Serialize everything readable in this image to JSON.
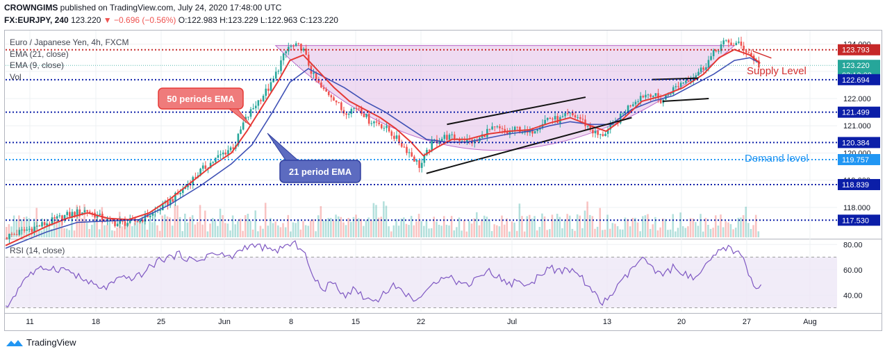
{
  "header": {
    "publisher": "CROWNGIMS",
    "published_text": "published on TradingView.com, July 24, 2020 17:48:00 UTC",
    "symbol": "FX:EURJPY, 240",
    "last": "123.220",
    "change": "▼ −0.696 (−0.56%)",
    "ohlc": "O:122.983 H:123.229 L:122.963 C:123.220"
  },
  "legend": {
    "title": "Euro / Japanese Yen, 4h, FXCM",
    "ema21": "EMA (21, close)",
    "ema9": "EMA (9, close)",
    "vol": "Vol",
    "rsi": "RSI (14, close)"
  },
  "footer": {
    "brand": "TradingView"
  },
  "colors": {
    "up": "#26a69a",
    "down": "#ef5350",
    "ema_fast": "#e53935",
    "ema_slow": "#3f51b5",
    "dotted_blue": "#0b1ea8",
    "dotted_red": "#c62828",
    "rsi": "#7e57c2",
    "cup_fill": "#e1bee7"
  },
  "chart_data": [
    {
      "type": "candlestick",
      "title": "Euro / Japanese Yen, 4h, FXCM",
      "x_ticks": [
        "11",
        "18",
        "25",
        "Jun",
        "8",
        "15",
        "22",
        "Jul",
        "13",
        "20",
        "27",
        "Aug"
      ],
      "y_ticks": [
        "124.000",
        "123.000",
        "122.000",
        "121.000",
        "120.000",
        "119.000",
        "118.000"
      ],
      "ylim": [
        116.9,
        124.5
      ],
      "price_path": [
        [
          0,
          116.9
        ],
        [
          4,
          117.4
        ],
        [
          6,
          117.7
        ],
        [
          8,
          117.9
        ],
        [
          9.5,
          117.6
        ],
        [
          11,
          117.4
        ],
        [
          13,
          117.5
        ],
        [
          15,
          117.9
        ],
        [
          17,
          118.5
        ],
        [
          19,
          119.3
        ],
        [
          21,
          119.9
        ],
        [
          22.5,
          120.3
        ],
        [
          23.3,
          121.1
        ],
        [
          24.5,
          121.8
        ],
        [
          26,
          122.5
        ],
        [
          27,
          123.4
        ],
        [
          27.7,
          123.9
        ],
        [
          29,
          123.9
        ],
        [
          30,
          122.9
        ],
        [
          31,
          122.3
        ],
        [
          32,
          122.1
        ],
        [
          33,
          121.5
        ],
        [
          34.5,
          121.7
        ],
        [
          35.5,
          121.2
        ],
        [
          36.5,
          121.1
        ],
        [
          37.5,
          120.8
        ],
        [
          38.5,
          120.4
        ],
        [
          39.5,
          120.0
        ],
        [
          40.5,
          119.5
        ],
        [
          41.7,
          120.4
        ],
        [
          43,
          120.6
        ],
        [
          44.5,
          120.5
        ],
        [
          46,
          120.4
        ],
        [
          47,
          120.8
        ],
        [
          48,
          120.9
        ],
        [
          49,
          120.7
        ],
        [
          50,
          120.9
        ],
        [
          51,
          120.7
        ],
        [
          52,
          121.0
        ],
        [
          53,
          121.3
        ],
        [
          54,
          121.2
        ],
        [
          55,
          121.4
        ],
        [
          56,
          121.3
        ],
        [
          57,
          120.9
        ],
        [
          58,
          120.6
        ],
        [
          59,
          120.9
        ],
        [
          60,
          121.3
        ],
        [
          61,
          121.8
        ],
        [
          62,
          122.1
        ],
        [
          63,
          122.2
        ],
        [
          64,
          121.9
        ],
        [
          65,
          122.3
        ],
        [
          66,
          122.6
        ],
        [
          67,
          122.8
        ],
        [
          68,
          123.1
        ],
        [
          69,
          123.6
        ],
        [
          70,
          124.05
        ],
        [
          71.5,
          124.0
        ],
        [
          72.5,
          123.7
        ],
        [
          73.5,
          123.22
        ]
      ],
      "ema_fast_path": [
        [
          0,
          116.6
        ],
        [
          4,
          117.3
        ],
        [
          6,
          117.6
        ],
        [
          8,
          117.8
        ],
        [
          10,
          117.6
        ],
        [
          12,
          117.55
        ],
        [
          14,
          117.8
        ],
        [
          16,
          118.3
        ],
        [
          18,
          118.9
        ],
        [
          20,
          119.5
        ],
        [
          22,
          120.0
        ],
        [
          23.5,
          120.8
        ],
        [
          25,
          121.7
        ],
        [
          26.5,
          122.6
        ],
        [
          27.7,
          123.4
        ],
        [
          29,
          123.6
        ],
        [
          30.5,
          123.0
        ],
        [
          32,
          122.4
        ],
        [
          33.5,
          121.9
        ],
        [
          35,
          121.6
        ],
        [
          36.5,
          121.3
        ],
        [
          38,
          120.9
        ],
        [
          39.5,
          120.4
        ],
        [
          40.7,
          119.9
        ],
        [
          42,
          120.2
        ],
        [
          43.5,
          120.5
        ],
        [
          45,
          120.5
        ],
        [
          47,
          120.7
        ],
        [
          49,
          120.8
        ],
        [
          51,
          120.85
        ],
        [
          53,
          121.1
        ],
        [
          55,
          121.3
        ],
        [
          57,
          121.0
        ],
        [
          58.5,
          120.8
        ],
        [
          60,
          121.2
        ],
        [
          62,
          121.9
        ],
        [
          64,
          122.1
        ],
        [
          66,
          122.4
        ],
        [
          68,
          122.9
        ],
        [
          69.5,
          123.5
        ],
        [
          71,
          123.8
        ],
        [
          72.5,
          123.6
        ],
        [
          73.5,
          123.3
        ]
      ],
      "ema_slow_path": [
        [
          0,
          116.5
        ],
        [
          4,
          117.1
        ],
        [
          7,
          117.45
        ],
        [
          10,
          117.5
        ],
        [
          13,
          117.55
        ],
        [
          16,
          118.1
        ],
        [
          19,
          118.8
        ],
        [
          22,
          119.6
        ],
        [
          24,
          120.3
        ],
        [
          26,
          121.5
        ],
        [
          27.7,
          122.6
        ],
        [
          29.5,
          123.1
        ],
        [
          31,
          122.8
        ],
        [
          33,
          122.4
        ],
        [
          35,
          121.9
        ],
        [
          37,
          121.5
        ],
        [
          39,
          121.0
        ],
        [
          41,
          120.5
        ],
        [
          43,
          120.4
        ],
        [
          45,
          120.4
        ],
        [
          47,
          120.55
        ],
        [
          49,
          120.7
        ],
        [
          51,
          120.8
        ],
        [
          53,
          121.0
        ],
        [
          55,
          121.15
        ],
        [
          57,
          121.05
        ],
        [
          59,
          121.05
        ],
        [
          61,
          121.6
        ],
        [
          63,
          121.9
        ],
        [
          65,
          122.1
        ],
        [
          67,
          122.5
        ],
        [
          69,
          122.9
        ],
        [
          71,
          123.4
        ],
        [
          72.5,
          123.5
        ],
        [
          73.5,
          123.3
        ]
      ],
      "levels": [
        {
          "value": 123.793,
          "label": "123.793",
          "color": "#c62828"
        },
        {
          "value": 123.22,
          "label": "123.220",
          "color": "#26a69a"
        },
        {
          "value": 122.694,
          "label": "122.694",
          "color": "#0b1ea8"
        },
        {
          "value": 121.499,
          "label": "121.499",
          "color": "#0b1ea8"
        },
        {
          "value": 120.384,
          "label": "120.384",
          "color": "#0b1ea8"
        },
        {
          "value": 119.757,
          "label": "119.757",
          "color": "#2196f3"
        },
        {
          "value": 118.839,
          "label": "118.839",
          "color": "#0b1ea8"
        },
        {
          "value": 117.53,
          "label": "117.530",
          "color": "#0b1ea8"
        }
      ],
      "countdown": "03:12:08",
      "trendlines": [
        {
          "from": [
            41,
            119.25
          ],
          "to": [
            61,
            121.3
          ]
        },
        {
          "from": [
            43,
            121.05
          ],
          "to": [
            56.5,
            122.05
          ]
        },
        {
          "from": [
            63,
            122.7
          ],
          "to": [
            67.5,
            122.75
          ]
        },
        {
          "from": [
            64,
            121.9
          ],
          "to": [
            68.5,
            122.0
          ]
        }
      ],
      "annotations": {
        "supply": "Supply Level",
        "demand": "Demand level",
        "ema50_box": "50 periods EMA",
        "ema21_box": "21 period EMA"
      }
    },
    {
      "type": "line",
      "title": "RSI (14, close)",
      "y_ticks": [
        "80.00",
        "60.00",
        "40.00"
      ],
      "ylim": [
        27,
        84
      ],
      "band": [
        30,
        70
      ],
      "values": [
        [
          0,
          29
        ],
        [
          2,
          55
        ],
        [
          4,
          62
        ],
        [
          6,
          60
        ],
        [
          8,
          50
        ],
        [
          9.5,
          45
        ],
        [
          11,
          52
        ],
        [
          13,
          55
        ],
        [
          15,
          68
        ],
        [
          17,
          72
        ],
        [
          18.5,
          66
        ],
        [
          20,
          73
        ],
        [
          22,
          70
        ],
        [
          23.5,
          79
        ],
        [
          25,
          78
        ],
        [
          26,
          74
        ],
        [
          27,
          78
        ],
        [
          28.2,
          80
        ],
        [
          29,
          77
        ],
        [
          30,
          52
        ],
        [
          31,
          45
        ],
        [
          32,
          50
        ],
        [
          33,
          40
        ],
        [
          34,
          45
        ],
        [
          35,
          38
        ],
        [
          36,
          35
        ],
        [
          37,
          43
        ],
        [
          38,
          48
        ],
        [
          39,
          40
        ],
        [
          40,
          37
        ],
        [
          41,
          41
        ],
        [
          42,
          52
        ],
        [
          43,
          57
        ],
        [
          44,
          50
        ],
        [
          45,
          48
        ],
        [
          46,
          55
        ],
        [
          47,
          59
        ],
        [
          48,
          55
        ],
        [
          49,
          48
        ],
        [
          50,
          52
        ],
        [
          51,
          46
        ],
        [
          52,
          57
        ],
        [
          53,
          62
        ],
        [
          54,
          58
        ],
        [
          55,
          60
        ],
        [
          56,
          55
        ],
        [
          57,
          45
        ],
        [
          58,
          33
        ],
        [
          59,
          40
        ],
        [
          60,
          50
        ],
        [
          61,
          60
        ],
        [
          62,
          70
        ],
        [
          63,
          60
        ],
        [
          64,
          55
        ],
        [
          65,
          62
        ],
        [
          66,
          58
        ],
        [
          67,
          52
        ],
        [
          68,
          60
        ],
        [
          69,
          70
        ],
        [
          70,
          78
        ],
        [
          71,
          75
        ],
        [
          71.8,
          70
        ],
        [
          72.5,
          55
        ],
        [
          73.2,
          45
        ],
        [
          73.6,
          48
        ]
      ]
    }
  ]
}
